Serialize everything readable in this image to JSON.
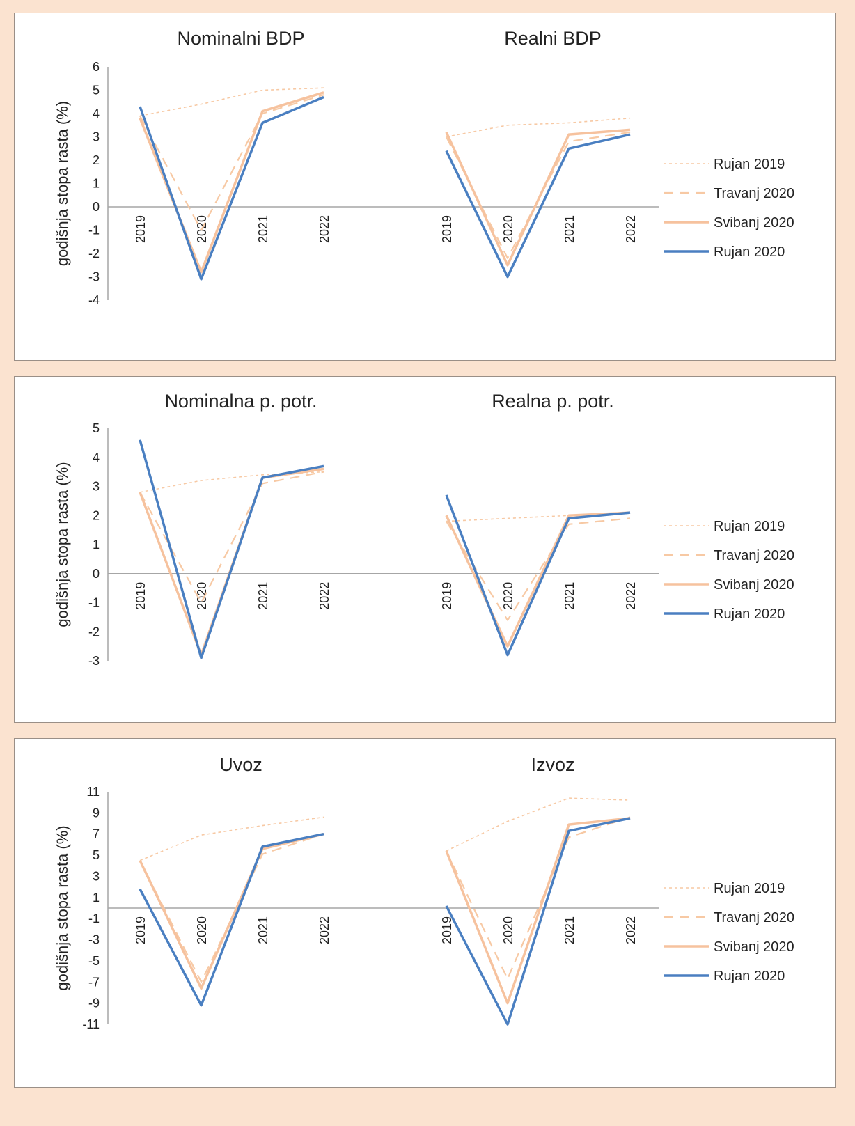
{
  "caption": "",
  "colors": {
    "rujan_2019": "#f7c9a4",
    "travanj_2020": "#f7c9a4",
    "svibanj_2020": "#f6c29e",
    "rujan_2020": "#4a7fc1",
    "axis": "#a6a6a6"
  },
  "chart_data": [
    {
      "type": "line",
      "ylabel": "godišnja stopa rasta (%)",
      "ylim": [
        -4,
        6
      ],
      "yticks": [
        6,
        5,
        4,
        3,
        2,
        1,
        0,
        -1,
        -2,
        -3,
        -4
      ],
      "legend": [
        "Rujan 2019",
        "Travanj 2020",
        "Svibanj 2020",
        "Rujan 2020"
      ],
      "legend_position": "right",
      "subplots": [
        {
          "title": "Nominalni BDP",
          "categories": [
            "2019",
            "2020",
            "2021",
            "2022"
          ],
          "series": [
            {
              "name": "Rujan 2019",
              "values": [
                3.9,
                4.4,
                5.0,
                5.1
              ]
            },
            {
              "name": "Travanj 2020",
              "values": [
                3.9,
                -1.0,
                4.0,
                4.8
              ]
            },
            {
              "name": "Svibanj 2020",
              "values": [
                3.8,
                -2.8,
                4.1,
                4.9
              ]
            },
            {
              "name": "Rujan 2020",
              "values": [
                4.3,
                -3.1,
                3.6,
                4.7
              ]
            }
          ]
        },
        {
          "title": "Realni BDP",
          "categories": [
            "2019",
            "2020",
            "2021",
            "2022"
          ],
          "series": [
            {
              "name": "Rujan 2019",
              "values": [
                3.0,
                3.5,
                3.6,
                3.8
              ]
            },
            {
              "name": "Travanj 2020",
              "values": [
                3.0,
                -2.2,
                2.8,
                3.2
              ]
            },
            {
              "name": "Svibanj 2020",
              "values": [
                3.2,
                -2.5,
                3.1,
                3.3
              ]
            },
            {
              "name": "Rujan 2020",
              "values": [
                2.4,
                -3.0,
                2.5,
                3.1
              ]
            }
          ]
        }
      ]
    },
    {
      "type": "line",
      "ylabel": "godišnja stopa rasta (%)",
      "ylim": [
        -3,
        5
      ],
      "yticks": [
        5,
        4,
        3,
        2,
        1,
        0,
        -1,
        -2,
        -3
      ],
      "legend": [
        "Rujan 2019",
        "Travanj 2020",
        "Svibanj 2020",
        "Rujan 2020"
      ],
      "legend_position": "right",
      "subplots": [
        {
          "title": "Nominalna p. potr.",
          "categories": [
            "2019",
            "2020",
            "2021",
            "2022"
          ],
          "series": [
            {
              "name": "Rujan 2019",
              "values": [
                2.8,
                3.2,
                3.4,
                3.5
              ]
            },
            {
              "name": "Travanj 2020",
              "values": [
                2.8,
                -1.0,
                3.1,
                3.5
              ]
            },
            {
              "name": "Svibanj 2020",
              "values": [
                2.8,
                -2.8,
                3.3,
                3.6
              ]
            },
            {
              "name": "Rujan 2020",
              "values": [
                4.6,
                -2.9,
                3.3,
                3.7
              ]
            }
          ]
        },
        {
          "title": "Realna p. potr.",
          "categories": [
            "2019",
            "2020",
            "2021",
            "2022"
          ],
          "series": [
            {
              "name": "Rujan 2019",
              "values": [
                1.8,
                1.9,
                2.0,
                2.1
              ]
            },
            {
              "name": "Travanj 2020",
              "values": [
                1.8,
                -1.6,
                1.7,
                1.9
              ]
            },
            {
              "name": "Svibanj 2020",
              "values": [
                2.0,
                -2.5,
                2.0,
                2.1
              ]
            },
            {
              "name": "Rujan 2020",
              "values": [
                2.7,
                -2.8,
                1.9,
                2.1
              ]
            }
          ]
        }
      ]
    },
    {
      "type": "line",
      "ylabel": "godišnja stopa rasta (%)",
      "ylim": [
        -11,
        11
      ],
      "yticks": [
        11,
        9,
        7,
        5,
        3,
        1,
        -1,
        -3,
        -5,
        -7,
        -9,
        -11
      ],
      "legend": [
        "Rujan 2019",
        "Travanj 2020",
        "Svibanj 2020",
        "Rujan 2020"
      ],
      "legend_position": "right",
      "subplots": [
        {
          "title": "Uvoz",
          "categories": [
            "2019",
            "2020",
            "2021",
            "2022"
          ],
          "series": [
            {
              "name": "Rujan 2019",
              "values": [
                4.5,
                6.9,
                7.8,
                8.6
              ]
            },
            {
              "name": "Travanj 2020",
              "values": [
                4.5,
                -7.0,
                5.1,
                7.0
              ]
            },
            {
              "name": "Svibanj 2020",
              "values": [
                4.5,
                -7.6,
                5.6,
                7.0
              ]
            },
            {
              "name": "Rujan 2020",
              "values": [
                1.8,
                -9.2,
                5.8,
                7.0
              ]
            }
          ]
        },
        {
          "title": "Izvoz",
          "categories": [
            "2019",
            "2020",
            "2021",
            "2022"
          ],
          "series": [
            {
              "name": "Rujan 2019",
              "values": [
                5.4,
                8.2,
                10.4,
                10.2
              ]
            },
            {
              "name": "Travanj 2020",
              "values": [
                5.4,
                -6.7,
                6.7,
                8.6
              ]
            },
            {
              "name": "Svibanj 2020",
              "values": [
                5.4,
                -9.0,
                7.9,
                8.5
              ]
            },
            {
              "name": "Rujan 2020",
              "values": [
                0.2,
                -11.0,
                7.3,
                8.5
              ]
            }
          ]
        }
      ]
    }
  ]
}
